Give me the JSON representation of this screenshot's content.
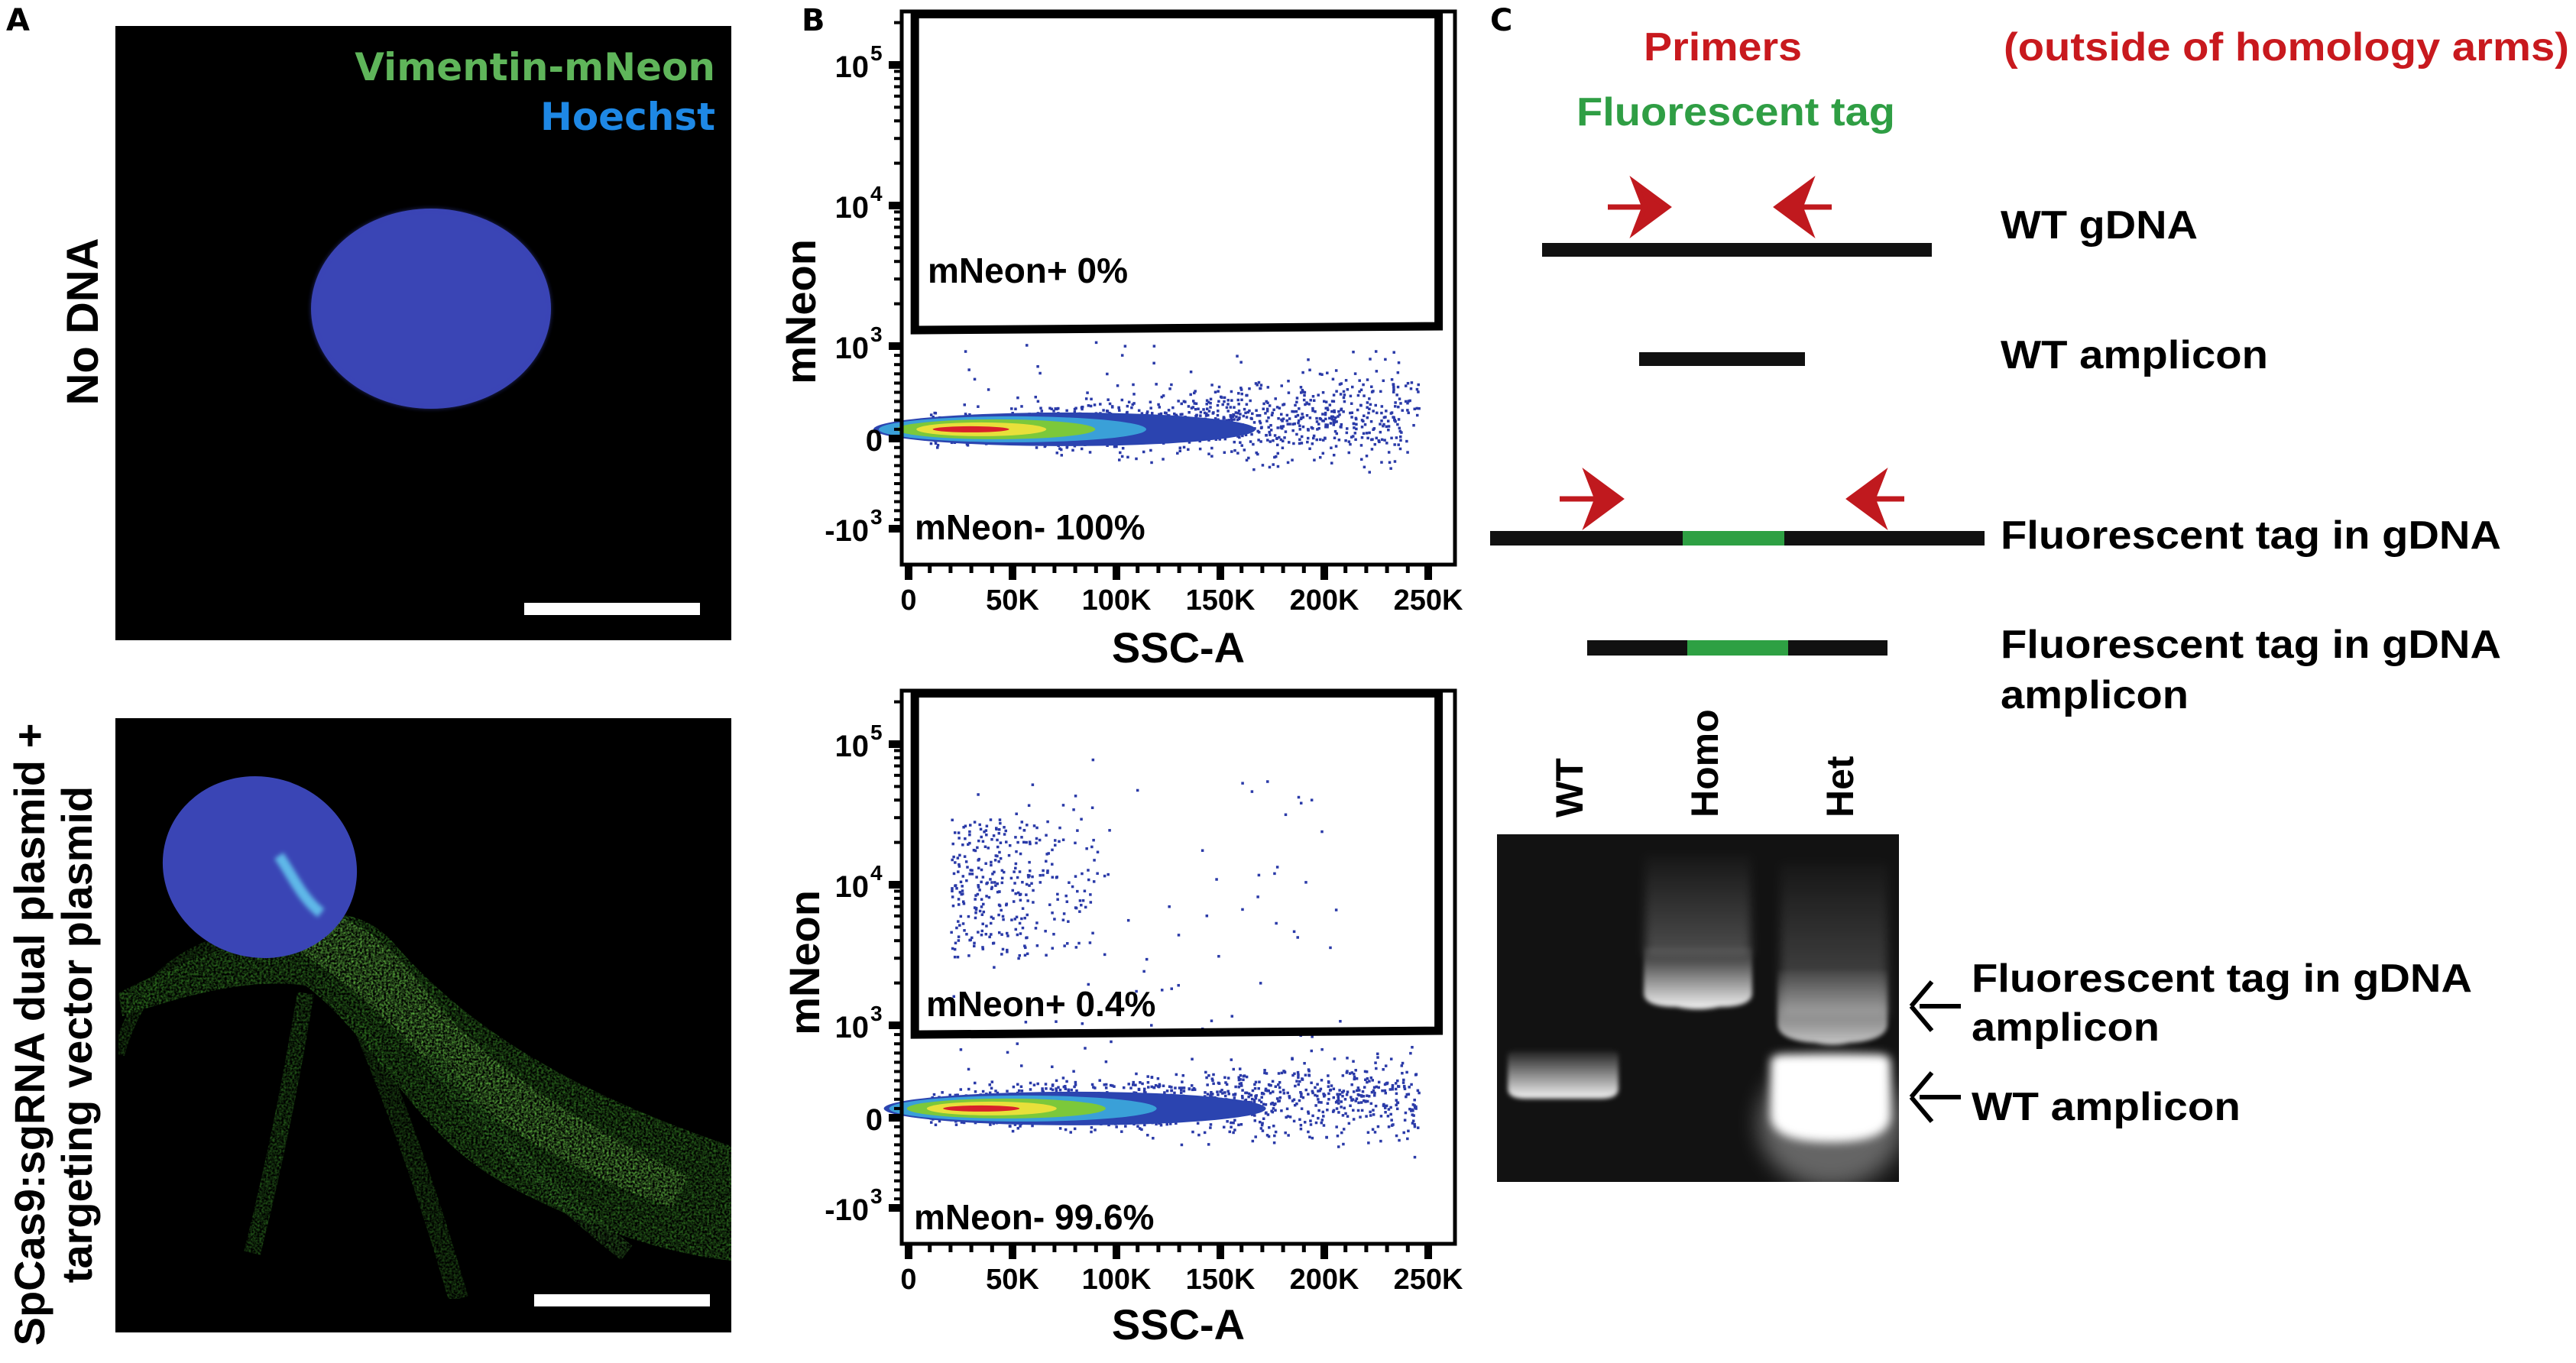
{
  "panel_labels": {
    "a": "A",
    "b": "B",
    "c": "C"
  },
  "panel_a": {
    "legend": {
      "green_channel": "Vimentin-mNeon",
      "blue_channel": "Hoechst"
    },
    "row_top_label": "No DNA",
    "row_bottom_label_line1": "SpCas9:sgRNA dual plasmid +",
    "row_bottom_label_line2": "targeting vector plasmid",
    "colors": {
      "mneon": "#5cc24a",
      "hoechst": "#3a45b5",
      "legend_green": "#5fb55a",
      "legend_blue": "#1e88e5",
      "background": "#000000",
      "scale_bar": "#ffffff"
    }
  },
  "chart_data": [
    {
      "type": "scatter",
      "plot_style": "flow-cytometry density dot plot",
      "xlabel": "SSC-A",
      "ylabel": "mNeon",
      "y_scale": "biexponential",
      "xlim": [
        0,
        260000
      ],
      "ylim": [
        -1500,
        250000
      ],
      "xticks": [
        {
          "value": 0,
          "label": "0"
        },
        {
          "value": 50000,
          "label": "50K"
        },
        {
          "value": 100000,
          "label": "100K"
        },
        {
          "value": 150000,
          "label": "150K"
        },
        {
          "value": 200000,
          "label": "200K"
        },
        {
          "value": 250000,
          "label": "250K"
        }
      ],
      "yticks": [
        {
          "value": 100000,
          "base": "10",
          "exp": "5"
        },
        {
          "value": 10000,
          "base": "10",
          "exp": "4"
        },
        {
          "value": 1000,
          "base": "10",
          "exp": "3"
        },
        {
          "value": 0,
          "base": "0",
          "exp": ""
        },
        {
          "value": -1000,
          "base": "-10",
          "exp": "3"
        }
      ],
      "gate": {
        "name": "mNeon+",
        "x_range": [
          3000,
          255000
        ],
        "y_range": [
          1300,
          230000
        ]
      },
      "populations": [
        {
          "name": "mNeon+",
          "percent": 0,
          "label": "mNeon+ 0%"
        },
        {
          "name": "mNeon-",
          "percent": 100,
          "label": "mNeon- 100%"
        }
      ],
      "main_cluster": {
        "ssc_range": [
          10000,
          245000
        ],
        "mneon_center": 100,
        "density_peak_ssc": 30000
      },
      "positive_cluster": null
    },
    {
      "type": "scatter",
      "plot_style": "flow-cytometry density dot plot",
      "xlabel": "SSC-A",
      "ylabel": "mNeon",
      "y_scale": "biexponential",
      "xlim": [
        0,
        260000
      ],
      "ylim": [
        -1500,
        250000
      ],
      "xticks": [
        {
          "value": 0,
          "label": "0"
        },
        {
          "value": 50000,
          "label": "50K"
        },
        {
          "value": 100000,
          "label": "100K"
        },
        {
          "value": 150000,
          "label": "150K"
        },
        {
          "value": 200000,
          "label": "200K"
        },
        {
          "value": 250000,
          "label": "250K"
        }
      ],
      "yticks": [
        {
          "value": 100000,
          "base": "10",
          "exp": "5"
        },
        {
          "value": 10000,
          "base": "10",
          "exp": "4"
        },
        {
          "value": 1000,
          "base": "10",
          "exp": "3"
        },
        {
          "value": 0,
          "base": "0",
          "exp": ""
        },
        {
          "value": -1000,
          "base": "-10",
          "exp": "3"
        }
      ],
      "gate": {
        "name": "mNeon+",
        "x_range": [
          3000,
          255000
        ],
        "y_range": [
          900,
          230000
        ]
      },
      "populations": [
        {
          "name": "mNeon+",
          "percent": 0.4,
          "label": "mNeon+ 0.4%"
        },
        {
          "name": "mNeon-",
          "percent": 99.6,
          "label": "mNeon- 99.6%"
        }
      ],
      "main_cluster": {
        "ssc_range": [
          10000,
          245000
        ],
        "mneon_center": 100,
        "density_peak_ssc": 35000
      },
      "positive_cluster": {
        "ssc_range": [
          20000,
          75000
        ],
        "mneon_range": [
          3000,
          30000
        ]
      }
    }
  ],
  "panel_c": {
    "primers_label": "Primers",
    "primers_note": "(outside of homology arms)",
    "tag_label": "Fluorescent tag",
    "constructs": [
      {
        "label": "WT gDNA"
      },
      {
        "label": "WT amplicon"
      },
      {
        "label": "Fluorescent tag in gDNA"
      },
      {
        "label_line1": "Fluorescent tag in gDNA",
        "label_line2": "amplicon"
      }
    ],
    "gel": {
      "lanes": [
        "WT",
        "Homo",
        "Het"
      ],
      "band_upper_line1": "Fluorescent tag in gDNA",
      "band_upper_line2": "amplicon",
      "band_lower": "WT amplicon"
    },
    "colors": {
      "primer": "#c0191e",
      "tag": "#2ea043",
      "dna": "#111111",
      "primers_text": "#c8191e",
      "tag_text": "#2f9e44"
    }
  }
}
